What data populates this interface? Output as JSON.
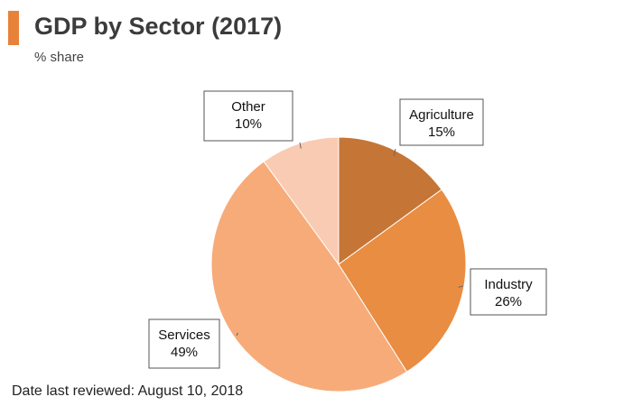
{
  "header": {
    "title": "GDP by Sector (2017)",
    "subtitle": "% share",
    "accent_color": "#e8823a"
  },
  "footer": {
    "text": "Date last reviewed: August 10, 2018"
  },
  "chart_data": {
    "type": "pie",
    "title": "GDP by Sector (2017)",
    "subtitle": "% share",
    "start_angle_deg": 0,
    "direction": "clockwise",
    "legend": "none",
    "slices": [
      {
        "label": "Agriculture",
        "value": 15,
        "value_label": "15%",
        "color": "#c57535"
      },
      {
        "label": "Industry",
        "value": 26,
        "value_label": "26%",
        "color": "#e98d42"
      },
      {
        "label": "Services",
        "value": 49,
        "value_label": "49%",
        "color": "#f7ab79"
      },
      {
        "label": "Other",
        "value": 10,
        "value_label": "10%",
        "color": "#f9cbb2"
      }
    ]
  }
}
